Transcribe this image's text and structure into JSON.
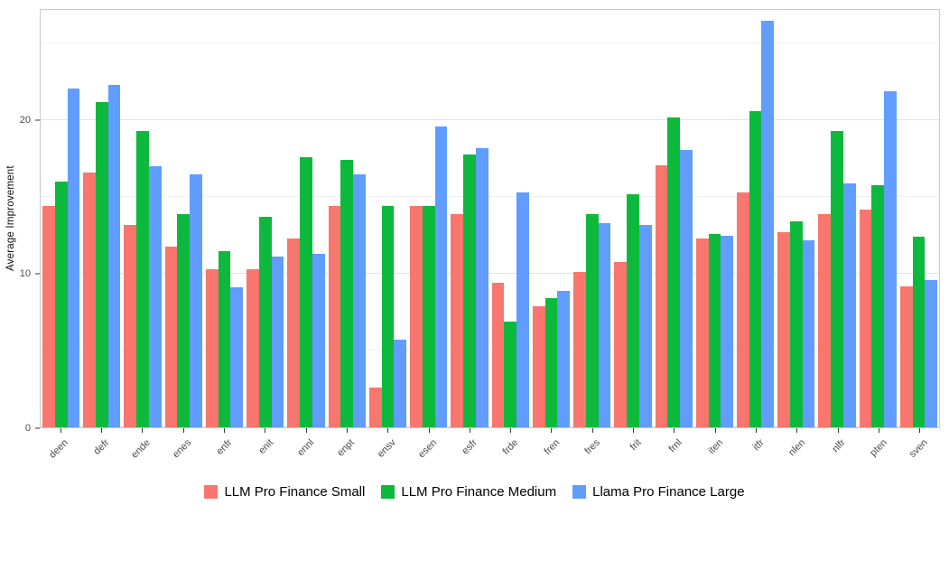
{
  "chart_data": {
    "type": "bar",
    "title": "",
    "xlabel": "",
    "ylabel": "Average Improvement",
    "ylim": [
      0,
      27.2
    ],
    "yticks": [
      0,
      10,
      20
    ],
    "yticks_minor": [
      5,
      15,
      25
    ],
    "grid": true,
    "legend_position": "bottom",
    "categories": [
      "deen",
      "defr",
      "ende",
      "enes",
      "enfr",
      "enit",
      "ennl",
      "enpt",
      "ensv",
      "esen",
      "esfr",
      "frde",
      "fren",
      "fres",
      "frit",
      "frnl",
      "iten",
      "itfr",
      "nlen",
      "nlfr",
      "pten",
      "sven"
    ],
    "series": [
      {
        "name": "LLM Pro Finance Small",
        "color": "#F8766D",
        "values": [
          14.4,
          16.6,
          13.2,
          11.8,
          10.3,
          10.3,
          12.3,
          14.4,
          2.6,
          14.4,
          13.9,
          9.4,
          7.9,
          10.1,
          10.8,
          17.1,
          12.3,
          15.3,
          12.7,
          13.9,
          14.2,
          9.2
        ]
      },
      {
        "name": "LLM Pro Finance Medium",
        "color": "#0DB93C",
        "values": [
          16.0,
          21.2,
          19.3,
          13.9,
          11.5,
          13.7,
          17.6,
          17.4,
          14.4,
          14.4,
          17.8,
          6.9,
          8.4,
          13.9,
          15.2,
          20.2,
          12.6,
          20.6,
          13.4,
          19.3,
          15.8,
          12.4
        ]
      },
      {
        "name": "Llama Pro Finance Large",
        "color": "#619CFF",
        "values": [
          22.1,
          22.3,
          17.0,
          16.5,
          9.1,
          11.1,
          11.3,
          16.5,
          5.7,
          19.6,
          18.2,
          15.3,
          8.9,
          13.3,
          13.2,
          18.1,
          12.5,
          26.5,
          12.2,
          15.9,
          21.9,
          9.6
        ]
      }
    ]
  }
}
